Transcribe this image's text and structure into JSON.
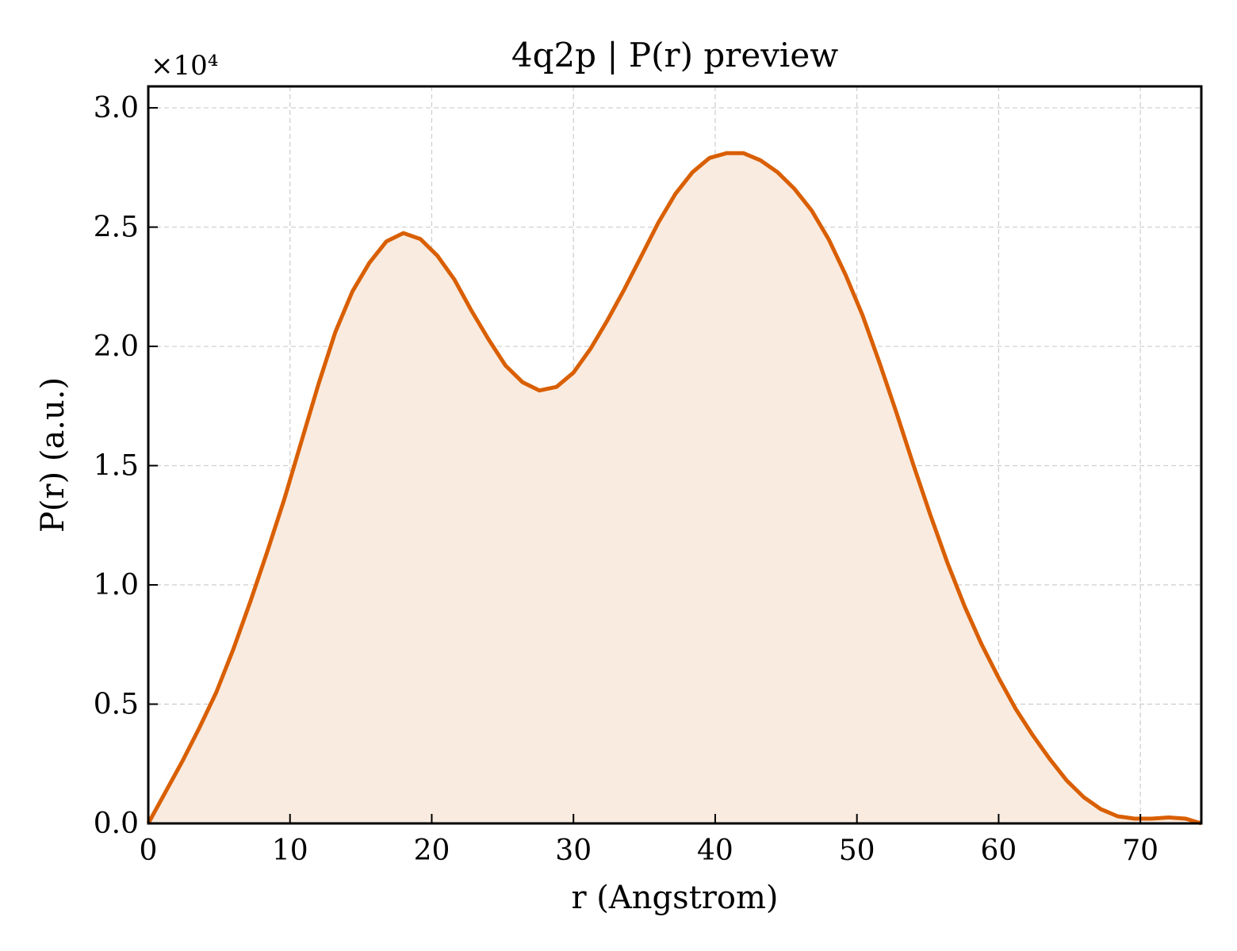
{
  "chart_data": {
    "type": "area",
    "title": "4q2p | P(r) preview",
    "xlabel": "r (Angstrom)",
    "ylabel": "P(r) (a.u.)",
    "y_offset_label": "×10⁴",
    "xlim": [
      0,
      74.3
    ],
    "ylim": [
      0,
      3.09
    ],
    "x_ticks": [
      0,
      10,
      20,
      30,
      40,
      50,
      60,
      70
    ],
    "x_tick_labels": [
      "0",
      "10",
      "20",
      "30",
      "40",
      "50",
      "60",
      "70"
    ],
    "y_ticks": [
      0,
      0.5,
      1.0,
      1.5,
      2.0,
      2.5,
      3.0
    ],
    "y_tick_labels": [
      "0.0",
      "0.5",
      "1.0",
      "1.5",
      "2.0",
      "2.5",
      "3.0"
    ],
    "grid": true,
    "colors": {
      "line": "#d95f02",
      "fill": "#f9ebe0"
    },
    "series": [
      {
        "x": [
          0,
          1.2,
          2.4,
          3.6,
          4.8,
          6.0,
          7.2,
          8.4,
          9.6,
          10.8,
          12.0,
          13.2,
          14.4,
          15.6,
          16.8,
          18.0,
          19.2,
          20.4,
          21.6,
          22.8,
          24.0,
          25.2,
          26.4,
          27.6,
          28.8,
          30.0,
          31.2,
          32.4,
          33.6,
          34.8,
          36.0,
          37.2,
          38.4,
          39.6,
          40.8,
          42.0,
          43.2,
          44.4,
          45.6,
          46.8,
          48.0,
          49.2,
          50.4,
          51.6,
          52.8,
          54.0,
          55.2,
          56.4,
          57.6,
          58.8,
          60.0,
          61.2,
          62.4,
          63.6,
          64.8,
          66.0,
          67.2,
          68.4,
          69.6,
          70.8,
          72.0,
          73.2,
          74.3
        ],
        "y": [
          0,
          0.13,
          0.26,
          0.4,
          0.55,
          0.73,
          0.93,
          1.14,
          1.36,
          1.6,
          1.84,
          2.06,
          2.23,
          2.35,
          2.44,
          2.475,
          2.45,
          2.38,
          2.28,
          2.15,
          2.03,
          1.92,
          1.85,
          1.815,
          1.83,
          1.89,
          1.99,
          2.11,
          2.24,
          2.38,
          2.52,
          2.64,
          2.73,
          2.79,
          2.81,
          2.81,
          2.78,
          2.73,
          2.66,
          2.57,
          2.45,
          2.3,
          2.13,
          1.93,
          1.72,
          1.5,
          1.29,
          1.09,
          0.91,
          0.75,
          0.61,
          0.48,
          0.37,
          0.27,
          0.18,
          0.11,
          0.06,
          0.03,
          0.02,
          0.02,
          0.025,
          0.02,
          0.0
        ]
      }
    ]
  }
}
